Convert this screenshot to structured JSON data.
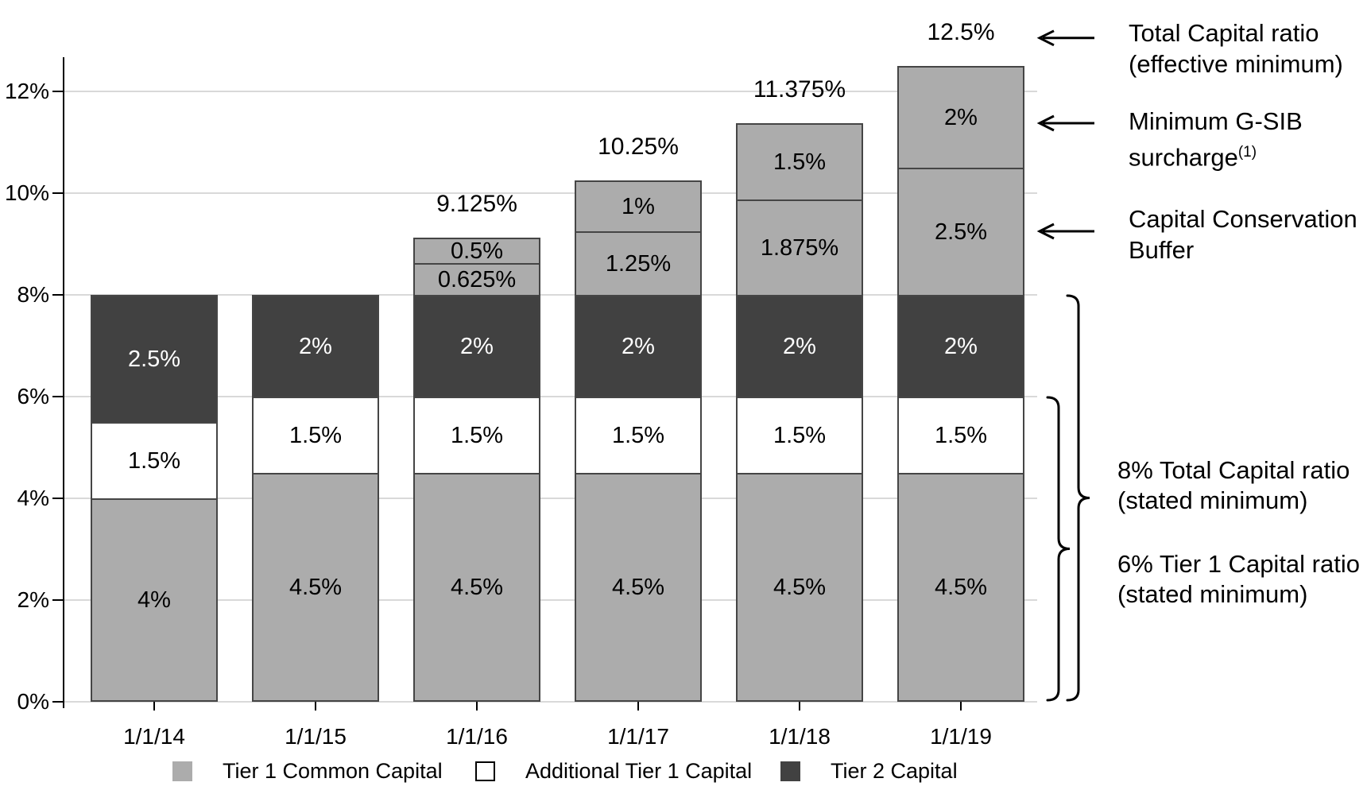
{
  "page": {
    "background": "#ffffff"
  },
  "chart_data": {
    "type": "bar",
    "stacked": true,
    "title": "",
    "xlabel": "",
    "ylabel": "",
    "unit": "%",
    "ylim": [
      0,
      12.6
    ],
    "grid": true,
    "legend_position": "bottom",
    "categories": [
      "1/1/14",
      "1/1/15",
      "1/1/16",
      "1/1/17",
      "1/1/18",
      "1/1/19"
    ],
    "yticks": [
      {
        "value": 0,
        "label": "0%"
      },
      {
        "value": 2,
        "label": "2%"
      },
      {
        "value": 4,
        "label": "4%"
      },
      {
        "value": 6,
        "label": "6%"
      },
      {
        "value": 8,
        "label": "8%"
      },
      {
        "value": 10,
        "label": "10%"
      },
      {
        "value": 12,
        "label": "12%"
      }
    ],
    "series": [
      {
        "name": "Tier 1 Common Capital",
        "color": "#acacac",
        "text_color": "#000000",
        "values": [
          4,
          4.5,
          4.5,
          4.5,
          4.5,
          4.5
        ],
        "labels": [
          "4%",
          "4.5%",
          "4.5%",
          "4.5%",
          "4.5%",
          "4.5%"
        ]
      },
      {
        "name": "Additional Tier 1 Capital",
        "color": "#ffffff",
        "text_color": "#000000",
        "values": [
          1.5,
          1.5,
          1.5,
          1.5,
          1.5,
          1.5
        ],
        "labels": [
          "1.5%",
          "1.5%",
          "1.5%",
          "1.5%",
          "1.5%",
          "1.5%"
        ]
      },
      {
        "name": "Tier 2 Capital",
        "color": "#414141",
        "text_color": "#ffffff",
        "values": [
          2.5,
          2,
          2,
          2,
          2,
          2
        ],
        "labels": [
          "2.5%",
          "2%",
          "2%",
          "2%",
          "2%",
          "2%"
        ]
      },
      {
        "name": "Capital Conservation Buffer",
        "color": "#acacac",
        "text_color": "#000000",
        "values": [
          0,
          0,
          0.625,
          1.25,
          1.875,
          2.5
        ],
        "labels": [
          "",
          "",
          "0.625%",
          "1.25%",
          "1.875%",
          "2.5%"
        ]
      },
      {
        "name": "Minimum G-SIB surcharge",
        "color": "#acacac",
        "text_color": "#000000",
        "values": [
          0,
          0,
          0.5,
          1,
          1.5,
          2
        ],
        "labels": [
          "",
          "",
          "0.5%",
          "1%",
          "1.5%",
          "2%"
        ]
      }
    ],
    "totals_pct": [
      8,
      8,
      9.125,
      10.25,
      11.375,
      12.5
    ],
    "total_labels": [
      "",
      "",
      "9.125%",
      "10.25%",
      "11.375%",
      "12.5%"
    ],
    "legend": [
      {
        "label": "Tier 1 Common Capital",
        "color": "#acacac",
        "border": "none"
      },
      {
        "label": "Additional Tier 1 Capital",
        "color": "#ffffff",
        "border": "2px solid #000000"
      },
      {
        "label": "Tier 2 Capital",
        "color": "#414141",
        "border": "none"
      }
    ],
    "colors": {
      "grid": "#d9d9d9",
      "axis": "#000000",
      "segment_border": "#454545",
      "annotation": "#000000"
    },
    "annotations": {
      "arrows": [
        {
          "line1": "Total Capital ratio",
          "line2": "(effective minimum)",
          "sup": "",
          "at_pct": 13.05
        },
        {
          "line1": "Minimum G-SIB",
          "line2": "surcharge",
          "sup": "(1)",
          "at_pct": 11.375
        },
        {
          "line1": "Capital Conservation",
          "line2": "Buffer",
          "sup": "",
          "at_pct": 9.25
        }
      ],
      "braces": [
        {
          "label1": "8% Total Capital ratio",
          "label2": "(stated minimum)",
          "from_pct": 8,
          "to_pct": 0
        },
        {
          "label1": "6% Tier 1 Capital ratio",
          "label2": "(stated minimum)",
          "from_pct": 6,
          "to_pct": 0
        }
      ]
    }
  }
}
